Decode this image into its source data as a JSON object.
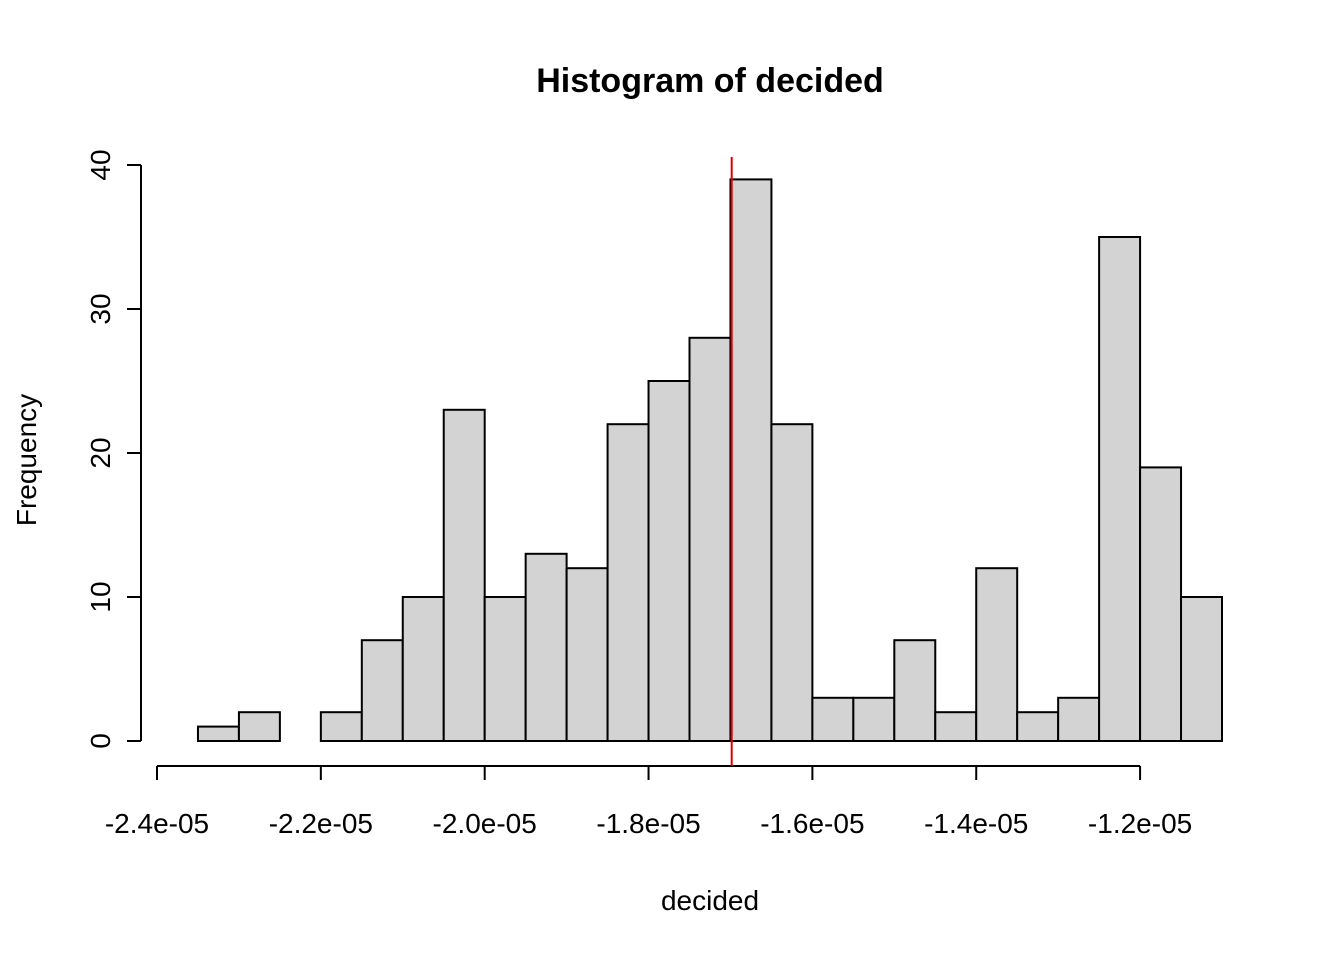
{
  "chart_data": {
    "type": "bar",
    "subtype": "histogram",
    "title": "Histogram of decided",
    "xlabel": "decided",
    "ylabel": "Frequency",
    "bin_width": 5e-07,
    "bins": [
      {
        "start": -2.35e-05,
        "end": -2.3e-05,
        "count": 1
      },
      {
        "start": -2.3e-05,
        "end": -2.25e-05,
        "count": 2
      },
      {
        "start": -2.25e-05,
        "end": -2.2e-05,
        "count": 0
      },
      {
        "start": -2.2e-05,
        "end": -2.15e-05,
        "count": 2
      },
      {
        "start": -2.15e-05,
        "end": -2.1e-05,
        "count": 7
      },
      {
        "start": -2.1e-05,
        "end": -2.05e-05,
        "count": 10
      },
      {
        "start": -2.05e-05,
        "end": -2e-05,
        "count": 23
      },
      {
        "start": -2e-05,
        "end": -1.95e-05,
        "count": 10
      },
      {
        "start": -1.95e-05,
        "end": -1.9e-05,
        "count": 13
      },
      {
        "start": -1.9e-05,
        "end": -1.85e-05,
        "count": 12
      },
      {
        "start": -1.85e-05,
        "end": -1.8e-05,
        "count": 22
      },
      {
        "start": -1.8e-05,
        "end": -1.75e-05,
        "count": 25
      },
      {
        "start": -1.75e-05,
        "end": -1.7e-05,
        "count": 28
      },
      {
        "start": -1.7e-05,
        "end": -1.65e-05,
        "count": 39
      },
      {
        "start": -1.65e-05,
        "end": -1.6e-05,
        "count": 22
      },
      {
        "start": -1.6e-05,
        "end": -1.55e-05,
        "count": 3
      },
      {
        "start": -1.55e-05,
        "end": -1.5e-05,
        "count": 3
      },
      {
        "start": -1.5e-05,
        "end": -1.45e-05,
        "count": 7
      },
      {
        "start": -1.45e-05,
        "end": -1.4e-05,
        "count": 2
      },
      {
        "start": -1.4e-05,
        "end": -1.35e-05,
        "count": 12
      },
      {
        "start": -1.35e-05,
        "end": -1.3e-05,
        "count": 2
      },
      {
        "start": -1.3e-05,
        "end": -1.25e-05,
        "count": 3
      },
      {
        "start": -1.25e-05,
        "end": -1.2e-05,
        "count": 35
      },
      {
        "start": -1.2e-05,
        "end": -1.15e-05,
        "count": 19
      },
      {
        "start": -1.15e-05,
        "end": -1.1e-05,
        "count": 10
      }
    ],
    "xlim": [
      -2.4e-05,
      -1.1e-05
    ],
    "ylim": [
      0,
      40
    ],
    "x_ticks": [
      {
        "value": -2.4e-05,
        "label": "-2.4e-05"
      },
      {
        "value": -2.2e-05,
        "label": "-2.2e-05"
      },
      {
        "value": -2e-05,
        "label": "-2.0e-05"
      },
      {
        "value": -1.8e-05,
        "label": "-1.8e-05"
      },
      {
        "value": -1.6e-05,
        "label": "-1.6e-05"
      },
      {
        "value": -1.4e-05,
        "label": "-1.4e-05"
      },
      {
        "value": -1.2e-05,
        "label": "-1.2e-05"
      }
    ],
    "y_ticks": [
      {
        "value": 0,
        "label": "0"
      },
      {
        "value": 10,
        "label": "10"
      },
      {
        "value": 20,
        "label": "20"
      },
      {
        "value": 30,
        "label": "30"
      },
      {
        "value": 40,
        "label": "40"
      }
    ],
    "reference_line": {
      "orientation": "vertical",
      "x": -1.6985e-05,
      "color": "#e00000"
    },
    "bar_fill": "#d3d3d3",
    "bar_stroke": "#000000",
    "grid": false
  }
}
